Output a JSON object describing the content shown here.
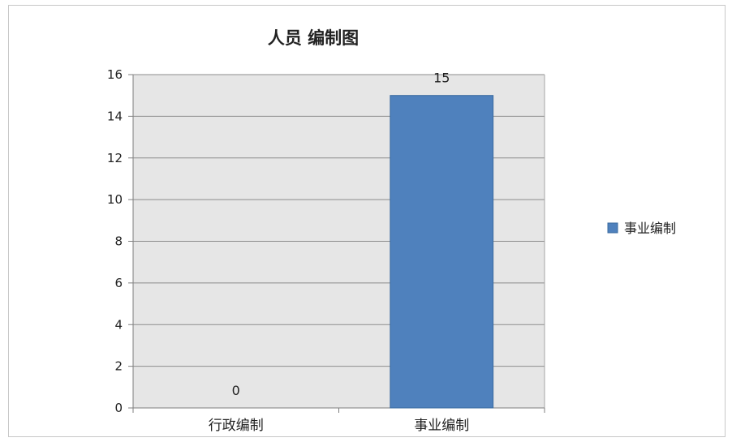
{
  "chart_data": {
    "type": "bar",
    "title": "人员 编制图",
    "categories": [
      "行政编制",
      "事业编制"
    ],
    "series": [
      {
        "name": "事业编制",
        "values": [
          0,
          15
        ],
        "color": "#4F81BD"
      }
    ],
    "ylim": [
      0,
      16
    ],
    "yticks": [
      0,
      2,
      4,
      6,
      8,
      10,
      12,
      14,
      16
    ],
    "data_labels": [
      "0",
      "15"
    ],
    "grid": true,
    "legend": "right",
    "plot_background": "#E6E6E6",
    "gridline_color": "#8C8C8C"
  }
}
